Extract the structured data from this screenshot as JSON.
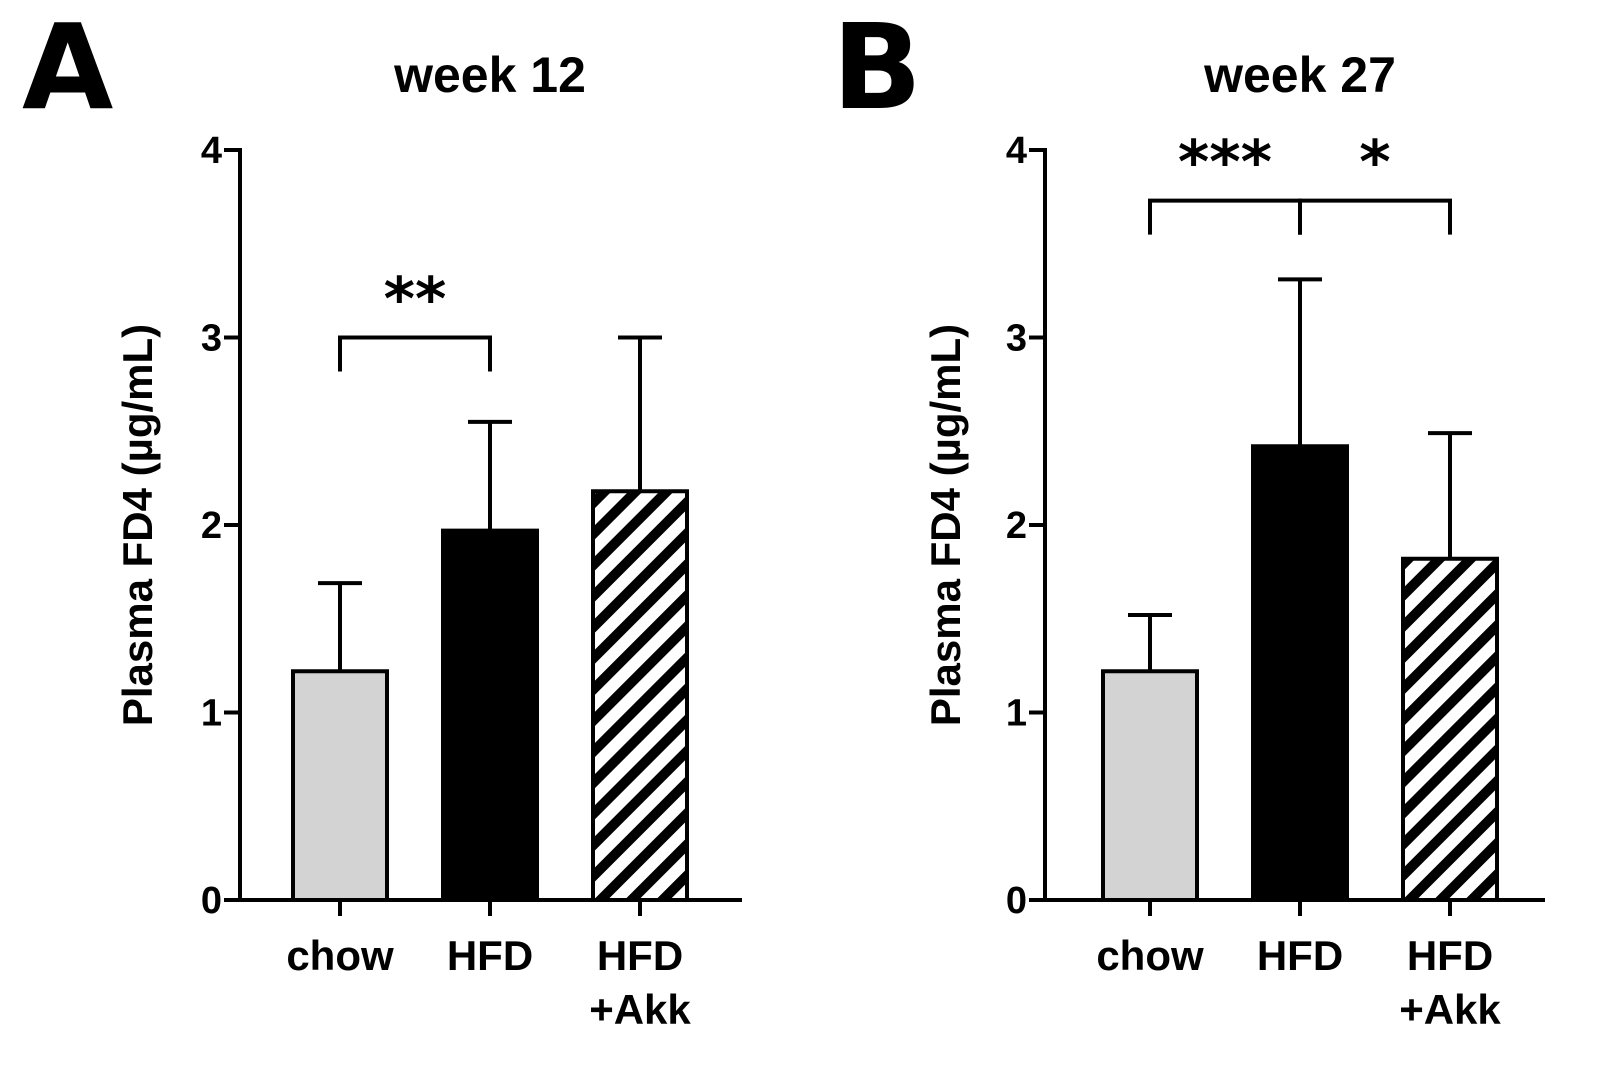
{
  "chart_data": [
    {
      "panel": "A",
      "type": "bar",
      "title": "week 12",
      "ylabel": "Plasma FD4 (µg/mL)",
      "ylim": [
        0,
        4
      ],
      "yticks": [
        "0",
        "1",
        "2",
        "3",
        "4"
      ],
      "categories": [
        {
          "lines": [
            "chow"
          ]
        },
        {
          "lines": [
            "HFD"
          ]
        },
        {
          "lines": [
            "HFD",
            "+Akk"
          ]
        }
      ],
      "values": [
        1.22,
        1.97,
        2.18
      ],
      "errors": [
        0.47,
        0.58,
        0.82
      ],
      "fills": [
        "gray",
        "black",
        "hatched"
      ],
      "significance": [
        {
          "label": "**",
          "from": 0,
          "to": 1,
          "y": 3.0
        }
      ]
    },
    {
      "panel": "B",
      "type": "bar",
      "title": "week 27",
      "ylabel": "Plasma FD4 (µg/mL)",
      "ylim": [
        0,
        4
      ],
      "yticks": [
        "0",
        "1",
        "2",
        "3",
        "4"
      ],
      "categories": [
        {
          "lines": [
            "chow"
          ]
        },
        {
          "lines": [
            "HFD"
          ]
        },
        {
          "lines": [
            "HFD",
            "+Akk"
          ]
        }
      ],
      "values": [
        1.22,
        2.42,
        1.82
      ],
      "errors": [
        0.3,
        0.89,
        0.67
      ],
      "fills": [
        "gray",
        "black",
        "hatched"
      ],
      "significance": [
        {
          "label": "***",
          "from": 0,
          "to": 1,
          "y": 3.73
        },
        {
          "label": "*",
          "from": 1,
          "to": 2,
          "y": 3.73
        }
      ]
    }
  ],
  "colors": {
    "gray": "#d3d3d3",
    "black": "#000000",
    "line": "#000000",
    "background": "#ffffff"
  }
}
